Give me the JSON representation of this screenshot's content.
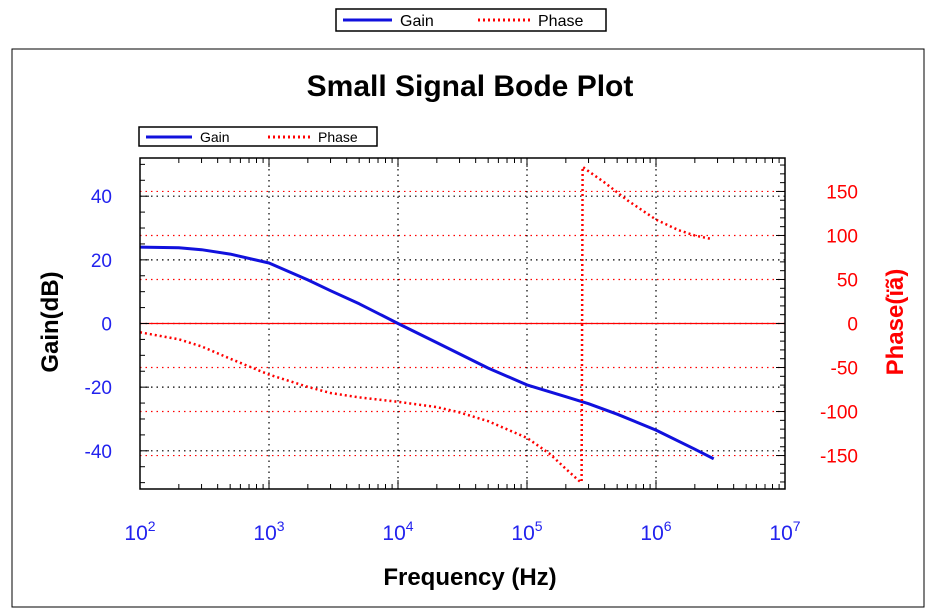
{
  "chart_data": {
    "type": "line",
    "title": "Small Signal Bode Plot",
    "xlabel": "Frequency (Hz)",
    "ylabel": "Gain(dB)",
    "y2label": "Phase(ïã)",
    "xscale": "log",
    "xlim": [
      100,
      10000000
    ],
    "ylim": [
      -52,
      52
    ],
    "y2lim": [
      -188,
      188
    ],
    "x_ticks": [
      {
        "base": "10",
        "exp": "2"
      },
      {
        "base": "10",
        "exp": "3"
      },
      {
        "base": "10",
        "exp": "4"
      },
      {
        "base": "10",
        "exp": "5"
      },
      {
        "base": "10",
        "exp": "6"
      },
      {
        "base": "10",
        "exp": "7"
      }
    ],
    "y_ticks": [
      "40",
      "20",
      "0",
      "-20",
      "-40"
    ],
    "y_tick_values": [
      40,
      20,
      0,
      -20,
      -40
    ],
    "y2_ticks": [
      "150",
      "100",
      "50",
      "0",
      "-50",
      "-100",
      "-150"
    ],
    "y2_tick_values": [
      150,
      100,
      50,
      0,
      -50,
      -100,
      -150
    ],
    "grid": true,
    "legend": {
      "placement": "top-left",
      "entries": [
        "Gain",
        "Phase"
      ]
    },
    "outer_legend": {
      "placement": "top-center",
      "entries": [
        "Gain",
        "Phase"
      ]
    },
    "series": [
      {
        "name": "Gain",
        "axis": "left",
        "style": "solid",
        "color": "#1111dd",
        "points": [
          [
            100,
            24
          ],
          [
            200,
            23.8
          ],
          [
            300,
            23.2
          ],
          [
            500,
            21.8
          ],
          [
            1000,
            19
          ],
          [
            2000,
            13.7
          ],
          [
            3000,
            10.3
          ],
          [
            5000,
            6.2
          ],
          [
            10000,
            0
          ],
          [
            20000,
            -6
          ],
          [
            50000,
            -14
          ],
          [
            100000,
            -19.3
          ],
          [
            200000,
            -23
          ],
          [
            300000,
            -25.2
          ],
          [
            500000,
            -28.5
          ],
          [
            1000000,
            -33.5
          ],
          [
            2000000,
            -39.5
          ],
          [
            2800000,
            -42.5
          ]
        ]
      },
      {
        "name": "Phase",
        "axis": "right",
        "style": "dotted",
        "color": "#ff0000",
        "points": [
          [
            100,
            -10
          ],
          [
            200,
            -18
          ],
          [
            300,
            -26
          ],
          [
            500,
            -40
          ],
          [
            1000,
            -58
          ],
          [
            2000,
            -72
          ],
          [
            3000,
            -79
          ],
          [
            5000,
            -84
          ],
          [
            10000,
            -89
          ],
          [
            20000,
            -95
          ],
          [
            30000,
            -101
          ],
          [
            50000,
            -111
          ],
          [
            100000,
            -130
          ],
          [
            150000,
            -148
          ],
          [
            200000,
            -165
          ],
          [
            250000,
            -178
          ],
          [
            260000,
            -180
          ],
          [
            265000,
            -180
          ],
          [
            270000,
            178
          ],
          [
            300000,
            173
          ],
          [
            400000,
            160
          ],
          [
            600000,
            140
          ],
          [
            1000000,
            118
          ],
          [
            1500000,
            106
          ],
          [
            2000000,
            100
          ],
          [
            2700000,
            96
          ]
        ]
      }
    ]
  },
  "colors": {
    "gain": "#1111dd",
    "phase": "#ff0000",
    "zero_line": "#ff0000",
    "grid": "#000000"
  }
}
